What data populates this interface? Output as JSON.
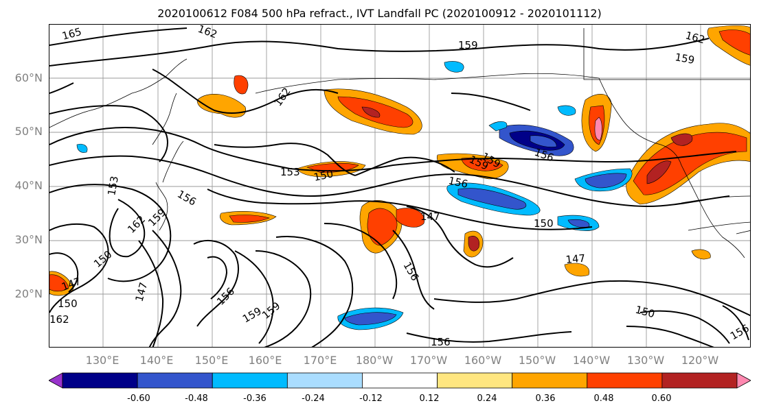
{
  "title": "2020100612 F084 500 hPa refract., IVT Landfall PC (2020100912 - 2020101112)",
  "lat_labels": [
    "60°N",
    "50°N",
    "40°N",
    "30°N",
    "20°N"
  ],
  "lon_labels": [
    "130°E",
    "140°E",
    "150°E",
    "160°E",
    "170°E",
    "180°W",
    "170°W",
    "160°W",
    "150°W",
    "140°W",
    "130°W",
    "120°W"
  ],
  "contour_labels": [
    "165",
    "162",
    "159",
    "162",
    "159",
    "162",
    "153",
    "150",
    "156",
    "159",
    "153",
    "156",
    "162",
    "159",
    "150",
    "147",
    "150",
    "147",
    "156",
    "159",
    "159",
    "156",
    "156",
    "147",
    "150",
    "147",
    "150",
    "156",
    "162",
    "156",
    "159"
  ],
  "colorbar": {
    "ticks": [
      "-0.60",
      "-0.48",
      "-0.36",
      "-0.24",
      "-0.12",
      "0.12",
      "0.24",
      "0.36",
      "0.48",
      "0.60"
    ],
    "colors": [
      "#9933cc",
      "#000088",
      "#3355cc",
      "#00bbff",
      "#aaddff",
      "#ffffff",
      "#ffe680",
      "#ffa500",
      "#ff4000",
      "#b22222",
      "#ff88b0"
    ]
  }
}
